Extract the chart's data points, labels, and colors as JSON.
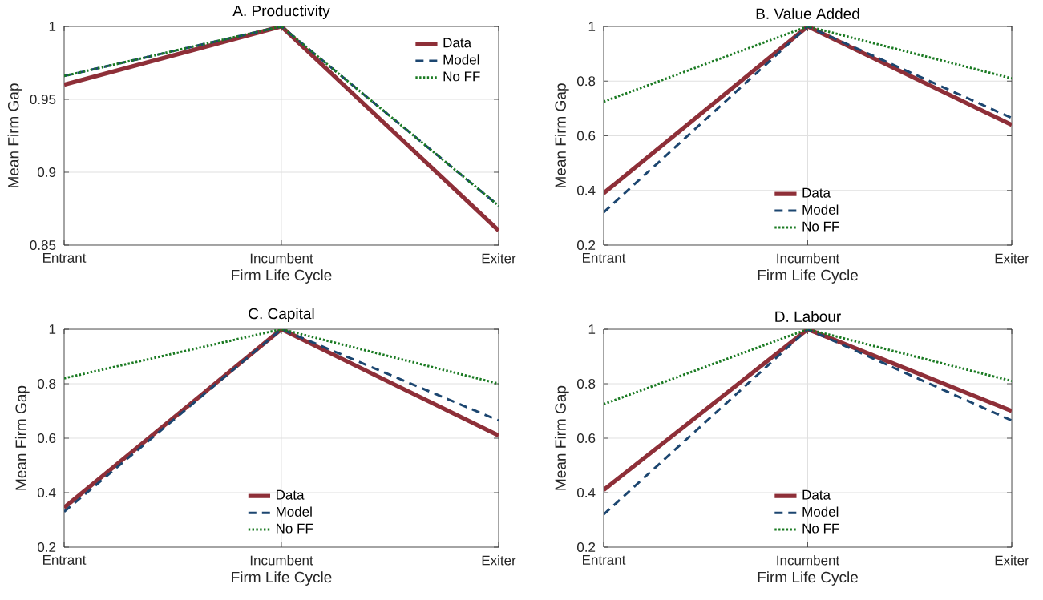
{
  "chart_data": [
    {
      "type": "line",
      "title": "A. Productivity",
      "xlabel": "Firm Life Cycle",
      "ylabel": "Mean Firm Gap",
      "categories": [
        "Entrant",
        "Incumbent",
        "Exiter"
      ],
      "ylim": [
        0.85,
        1
      ],
      "yticks": [
        0.85,
        0.9,
        0.95,
        1
      ],
      "grid": true,
      "legend": "top right",
      "series": [
        {
          "name": "Data",
          "color": "#8e2f38",
          "line_style": "solid",
          "values": [
            0.96,
            1,
            0.86
          ]
        },
        {
          "name": "Model",
          "color": "#1c4670",
          "line_style": "dashed",
          "values": [
            0.966,
            1,
            0.877
          ]
        },
        {
          "name": "No FF",
          "color": "#1a7a22",
          "line_style": "dotted",
          "values": [
            0.966,
            1,
            0.877
          ]
        }
      ]
    },
    {
      "type": "line",
      "title": "B. Value Added",
      "xlabel": "Firm Life Cycle",
      "ylabel": "Mean Firm Gap",
      "categories": [
        "Entrant",
        "Incumbent",
        "Exiter"
      ],
      "ylim": [
        0.2,
        1
      ],
      "yticks": [
        0.2,
        0.4,
        0.6,
        0.8,
        1
      ],
      "grid": true,
      "legend": "bottom",
      "series": [
        {
          "name": "Data",
          "color": "#8e2f38",
          "line_style": "solid",
          "values": [
            0.39,
            1,
            0.64
          ]
        },
        {
          "name": "Model",
          "color": "#1c4670",
          "line_style": "dashed",
          "values": [
            0.32,
            1,
            0.665
          ]
        },
        {
          "name": "No FF",
          "color": "#1a7a22",
          "line_style": "dotted",
          "values": [
            0.725,
            1,
            0.81
          ]
        }
      ]
    },
    {
      "type": "line",
      "title": "C. Capital",
      "xlabel": "Firm Life Cycle",
      "ylabel": "Mean Firm Gap",
      "categories": [
        "Entrant",
        "Incumbent",
        "Exiter"
      ],
      "ylim": [
        0.2,
        1
      ],
      "yticks": [
        0.2,
        0.4,
        0.6,
        0.8,
        1
      ],
      "grid": true,
      "legend": "bottom",
      "series": [
        {
          "name": "Data",
          "color": "#8e2f38",
          "line_style": "solid",
          "values": [
            0.345,
            1,
            0.61
          ]
        },
        {
          "name": "Model",
          "color": "#1c4670",
          "line_style": "dashed",
          "values": [
            0.33,
            1,
            0.665
          ]
        },
        {
          "name": "No FF",
          "color": "#1a7a22",
          "line_style": "dotted",
          "values": [
            0.82,
            1,
            0.8
          ]
        }
      ]
    },
    {
      "type": "line",
      "title": "D. Labour",
      "xlabel": "Firm Life Cycle",
      "ylabel": "Mean Firm Gap",
      "categories": [
        "Entrant",
        "Incumbent",
        "Exiter"
      ],
      "ylim": [
        0.2,
        1
      ],
      "yticks": [
        0.2,
        0.4,
        0.6,
        0.8,
        1
      ],
      "grid": true,
      "legend": "bottom",
      "series": [
        {
          "name": "Data",
          "color": "#8e2f38",
          "line_style": "solid",
          "values": [
            0.41,
            1,
            0.7
          ]
        },
        {
          "name": "Model",
          "color": "#1c4670",
          "line_style": "dashed",
          "values": [
            0.32,
            1,
            0.665
          ]
        },
        {
          "name": "No FF",
          "color": "#1a7a22",
          "line_style": "dotted",
          "values": [
            0.725,
            1,
            0.81
          ]
        }
      ]
    }
  ]
}
